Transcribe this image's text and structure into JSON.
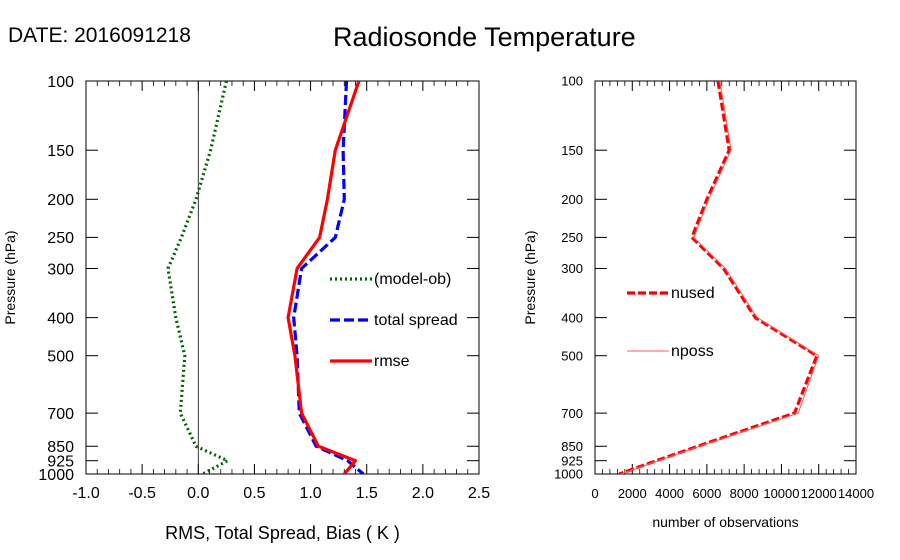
{
  "header": {
    "date_label": "DATE: 2016091218",
    "title": "Radiosonde Temperature"
  },
  "chart_data": [
    {
      "type": "line",
      "xlabel": "RMS, Total Spread, Bias ( K )",
      "ylabel": "Pressure (hPa)",
      "xlim": [
        -1.0,
        2.5
      ],
      "ylim": [
        1000,
        100
      ],
      "y_scale": "log",
      "x_ticks": [
        "-1.0",
        "-0.5",
        "0.0",
        "0.5",
        "1.0",
        "1.5",
        "2.0",
        "2.5"
      ],
      "y_ticks": [
        100,
        150,
        200,
        250,
        300,
        400,
        500,
        700,
        850,
        925,
        1000
      ],
      "zero_line": true,
      "legend_position": "right-middle",
      "series": [
        {
          "name": "(model-ob)",
          "color": "#006400",
          "style": "dotted",
          "points": [
            [
              0.25,
              100
            ],
            [
              0.11,
              150
            ],
            [
              -0.02,
              200
            ],
            [
              -0.15,
              250
            ],
            [
              -0.27,
              300
            ],
            [
              -0.2,
              400
            ],
            [
              -0.12,
              500
            ],
            [
              -0.16,
              700
            ],
            [
              -0.02,
              850
            ],
            [
              0.26,
              925
            ],
            [
              0.04,
              1000
            ]
          ]
        },
        {
          "name": "total spread",
          "color": "#0000ff",
          "style": "dashed",
          "points": [
            [
              1.32,
              100
            ],
            [
              1.29,
              150
            ],
            [
              1.3,
              200
            ],
            [
              1.22,
              250
            ],
            [
              0.92,
              300
            ],
            [
              0.85,
              400
            ],
            [
              0.88,
              500
            ],
            [
              0.9,
              700
            ],
            [
              1.05,
              850
            ],
            [
              1.33,
              925
            ],
            [
              1.47,
              1000
            ]
          ]
        },
        {
          "name": "rmse",
          "color": "#ff0000",
          "style": "solid",
          "points": [
            [
              1.43,
              100
            ],
            [
              1.22,
              150
            ],
            [
              1.15,
              200
            ],
            [
              1.08,
              250
            ],
            [
              0.88,
              300
            ],
            [
              0.8,
              400
            ],
            [
              0.86,
              500
            ],
            [
              0.92,
              700
            ],
            [
              1.07,
              850
            ],
            [
              1.4,
              925
            ],
            [
              1.3,
              1000
            ]
          ]
        }
      ]
    },
    {
      "type": "line",
      "xlabel": "number of observations",
      "ylabel": "Pressure (hPa)",
      "xlim": [
        0,
        14000
      ],
      "ylim": [
        1000,
        100
      ],
      "y_scale": "log",
      "x_ticks": [
        "0",
        "2000",
        "4000",
        "6000",
        "8000",
        "10000",
        "12000",
        "14000"
      ],
      "y_ticks": [
        100,
        150,
        200,
        250,
        300,
        400,
        500,
        700,
        850,
        925,
        1000
      ],
      "legend_position": "left-middle",
      "series": [
        {
          "name": "nused",
          "color": "#ff0000",
          "style": "dashed-thick",
          "points": [
            [
              6600,
              100
            ],
            [
              7200,
              150
            ],
            [
              6000,
              200
            ],
            [
              5200,
              250
            ],
            [
              6900,
              300
            ],
            [
              8600,
              400
            ],
            [
              11900,
              500
            ],
            [
              10700,
              700
            ],
            [
              5500,
              850
            ],
            [
              3300,
              925
            ],
            [
              1300,
              1000
            ]
          ]
        },
        {
          "name": "nposs",
          "color": "#ff0000",
          "style": "thin",
          "points": [
            [
              6700,
              100
            ],
            [
              7300,
              150
            ],
            [
              6100,
              200
            ],
            [
              5300,
              250
            ],
            [
              7000,
              300
            ],
            [
              8700,
              400
            ],
            [
              12000,
              500
            ],
            [
              10900,
              700
            ],
            [
              5600,
              850
            ],
            [
              3400,
              925
            ],
            [
              1400,
              1000
            ]
          ]
        }
      ]
    }
  ]
}
